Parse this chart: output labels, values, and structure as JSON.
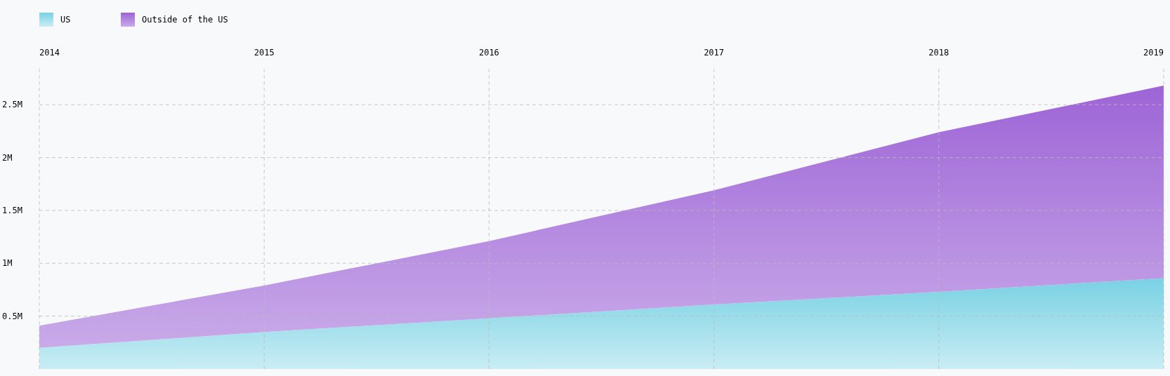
{
  "chart_data": {
    "type": "area",
    "stacked": true,
    "x": [
      2014,
      2015,
      2016,
      2017,
      2018,
      2019
    ],
    "xlim": [
      2014,
      2019
    ],
    "xticks": [
      2014,
      2015,
      2016,
      2017,
      2018,
      2019
    ],
    "ylim": [
      0,
      2840000
    ],
    "yticks": [
      {
        "value": 500000,
        "label": "0.5M"
      },
      {
        "value": 1000000,
        "label": "1M"
      },
      {
        "value": 1500000,
        "label": "1.5M"
      },
      {
        "value": 2000000,
        "label": "2M"
      },
      {
        "value": 2500000,
        "label": "2.5M"
      }
    ],
    "series": [
      {
        "name": "US",
        "color": "#a4e0ec",
        "values": [
          200000,
          350000,
          480000,
          610000,
          730000,
          860000
        ]
      },
      {
        "name": "Outside of the US",
        "color": "#b58ae0",
        "values": [
          210000,
          440000,
          730000,
          1080000,
          1510000,
          1820000
        ]
      }
    ],
    "grid": true,
    "legend": "top left"
  }
}
